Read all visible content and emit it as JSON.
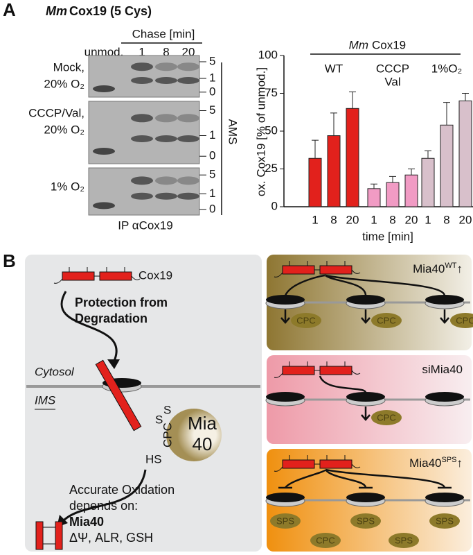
{
  "panel_a": {
    "label": "A",
    "title_italic": "Mm",
    "title": "Cox19 (5 Cys)",
    "chase": "Chase [min]",
    "lanes": [
      "unmod.",
      "1",
      "8",
      "20"
    ],
    "conditions": [
      [
        "Mock,",
        "20% O₂"
      ],
      [
        "CCCP/Val,",
        "20% O₂"
      ],
      [
        "1% O₂"
      ]
    ],
    "markers": [
      "5",
      "1",
      "0"
    ],
    "ams": "AMS",
    "ip": "IP αCox19"
  },
  "chart_data": {
    "type": "bar",
    "title_italic": "Mm",
    "title": "Cox19",
    "ylabel": "ox. Cox19 [% of unmod.]",
    "xlabel": "time [min]",
    "categories": [
      "1",
      "8",
      "20"
    ],
    "ylim": [
      0,
      100
    ],
    "yticks": [
      0,
      25,
      50,
      75,
      100
    ],
    "groups": [
      {
        "name": [
          "WT"
        ],
        "color": "#e2211c",
        "values": [
          32,
          47,
          65
        ],
        "errors": [
          12,
          15,
          11
        ]
      },
      {
        "name": [
          "CCCP",
          "Val"
        ],
        "color": "#f19bc4",
        "values": [
          12,
          16,
          21
        ],
        "errors": [
          3,
          4,
          4
        ]
      },
      {
        "name": [
          "1%O₂"
        ],
        "color": "#d8c0cb",
        "values": [
          32,
          54,
          70
        ],
        "errors": [
          5,
          15,
          5
        ]
      }
    ]
  },
  "panel_b": {
    "label": "B",
    "left": {
      "protein": "Cox19",
      "protection": [
        "Protection from",
        "Degradation"
      ],
      "cytosol": "Cytosol",
      "ims": "IMS",
      "s1": "S",
      "s2": "S",
      "hs": "HS",
      "cpc": "CPC",
      "mia": [
        "Mia",
        "40"
      ],
      "accurate": [
        "Accurate Oxidation",
        "depends on:"
      ],
      "mia40": "Mia40",
      "factors": "ΔΨ, ALR, GSH"
    },
    "boxes": [
      {
        "title": "Mia40",
        "sup": "WT",
        "arrow": "↑",
        "labels": [
          "CPC",
          "CPC",
          "CPC"
        ]
      },
      {
        "title": "siMia40",
        "labels": [
          "CPC"
        ]
      },
      {
        "title": "Mia40",
        "sup": "SPS",
        "arrow": "↑",
        "labels": [
          "SPS",
          "SPS",
          "SPS",
          "CPC",
          "SPS"
        ]
      }
    ]
  }
}
